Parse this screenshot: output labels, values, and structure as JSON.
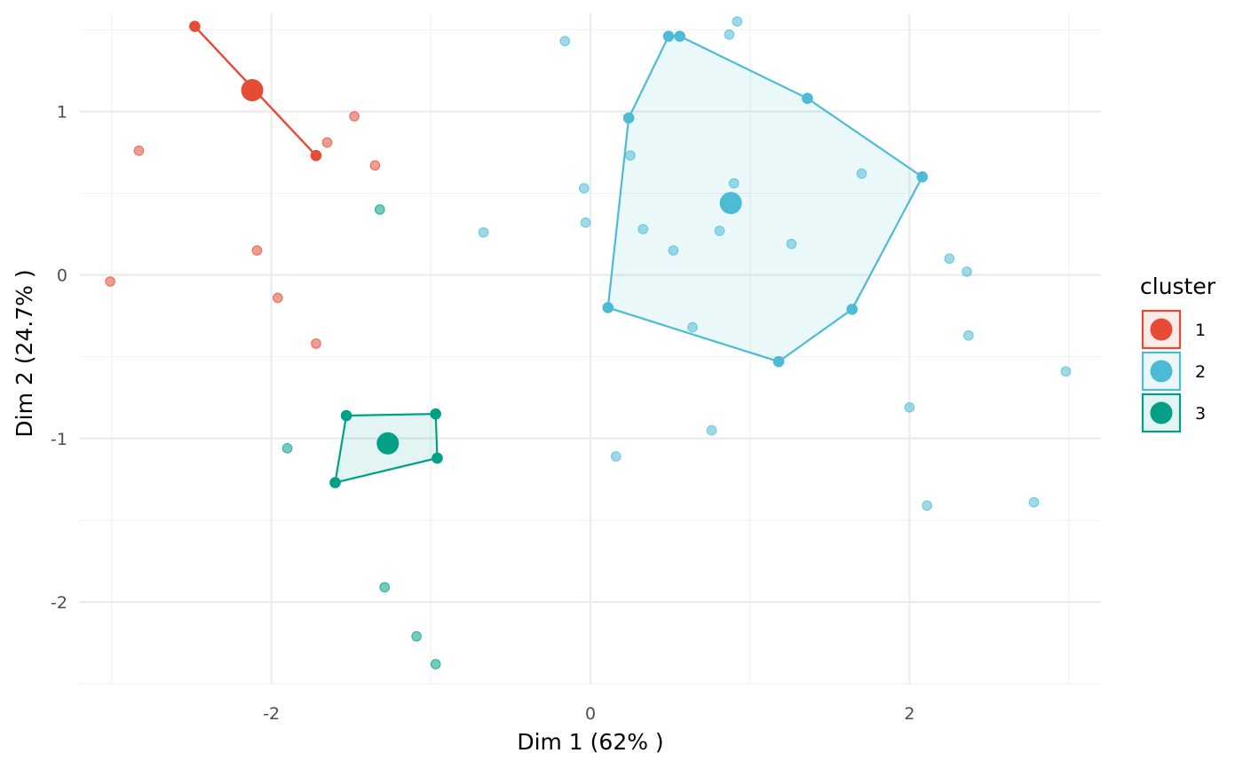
{
  "chart_data": {
    "type": "scatter",
    "xlabel": "Dim 1 (62% )",
    "ylabel": "Dim 2 (24.7% )",
    "xlim": [
      -3.2,
      3.2
    ],
    "ylim": [
      -2.5,
      1.6
    ],
    "x_ticks": [
      -2,
      0,
      2
    ],
    "y_ticks": [
      -2,
      -1,
      0,
      1
    ],
    "x_tick_labels": [
      "-2",
      "0",
      "2"
    ],
    "y_tick_labels": [
      "-2",
      "-1",
      "0",
      "1"
    ],
    "grid": true,
    "legend": {
      "title": "cluster",
      "position": "right",
      "entries": [
        "1",
        "2",
        "3"
      ]
    },
    "series": [
      {
        "name": "1",
        "color": "#E64B35",
        "center": [
          -2.12,
          1.13
        ],
        "hull": [
          [
            -2.48,
            1.52
          ],
          [
            -1.72,
            0.73
          ]
        ],
        "points": [
          [
            -2.48,
            1.52
          ],
          [
            -1.72,
            0.73
          ],
          [
            -2.83,
            0.76
          ],
          [
            -1.48,
            0.97
          ],
          [
            -1.65,
            0.81
          ],
          [
            -1.35,
            0.67
          ],
          [
            -2.09,
            0.15
          ],
          [
            -3.01,
            -0.04
          ],
          [
            -1.96,
            -0.14
          ],
          [
            -1.72,
            -0.42
          ]
        ]
      },
      {
        "name": "2",
        "color": "#4DBBD5",
        "center": [
          0.88,
          0.44
        ],
        "hull": [
          [
            0.49,
            1.46
          ],
          [
            0.56,
            1.46
          ],
          [
            1.36,
            1.08
          ],
          [
            2.08,
            0.6
          ],
          [
            1.64,
            -0.21
          ],
          [
            1.18,
            -0.53
          ],
          [
            0.11,
            -0.2
          ],
          [
            0.24,
            0.96
          ]
        ],
        "points": [
          [
            0.49,
            1.46
          ],
          [
            0.56,
            1.46
          ],
          [
            1.36,
            1.08
          ],
          [
            0.24,
            0.96
          ],
          [
            0.25,
            0.73
          ],
          [
            0.9,
            0.56
          ],
          [
            1.7,
            0.62
          ],
          [
            2.08,
            0.6
          ],
          [
            0.33,
            0.28
          ],
          [
            0.81,
            0.27
          ],
          [
            1.26,
            0.19
          ],
          [
            0.52,
            0.15
          ],
          [
            0.11,
            -0.2
          ],
          [
            0.64,
            -0.32
          ],
          [
            1.64,
            -0.21
          ],
          [
            1.18,
            -0.53
          ],
          [
            0.92,
            1.55
          ],
          [
            0.87,
            1.47
          ],
          [
            -0.16,
            1.43
          ],
          [
            -0.04,
            0.53
          ],
          [
            -0.03,
            0.32
          ],
          [
            -0.67,
            0.26
          ],
          [
            2.25,
            0.1
          ],
          [
            2.36,
            0.02
          ],
          [
            2.37,
            -0.37
          ],
          [
            2.98,
            -0.59
          ],
          [
            2.0,
            -0.81
          ],
          [
            0.76,
            -0.95
          ],
          [
            0.16,
            -1.11
          ],
          [
            2.11,
            -1.41
          ],
          [
            2.78,
            -1.39
          ]
        ]
      },
      {
        "name": "3",
        "color": "#00A087",
        "center": [
          -1.27,
          -1.03
        ],
        "hull": [
          [
            -1.53,
            -0.86
          ],
          [
            -0.97,
            -0.85
          ],
          [
            -0.96,
            -1.12
          ],
          [
            -1.6,
            -1.27
          ]
        ],
        "points": [
          [
            -1.53,
            -0.86
          ],
          [
            -0.97,
            -0.85
          ],
          [
            -0.96,
            -1.12
          ],
          [
            -1.6,
            -1.27
          ],
          [
            -1.32,
            0.4
          ],
          [
            -1.9,
            -1.06
          ],
          [
            -1.29,
            -1.91
          ],
          [
            -1.09,
            -2.21
          ],
          [
            -0.97,
            -2.38
          ]
        ]
      }
    ]
  }
}
